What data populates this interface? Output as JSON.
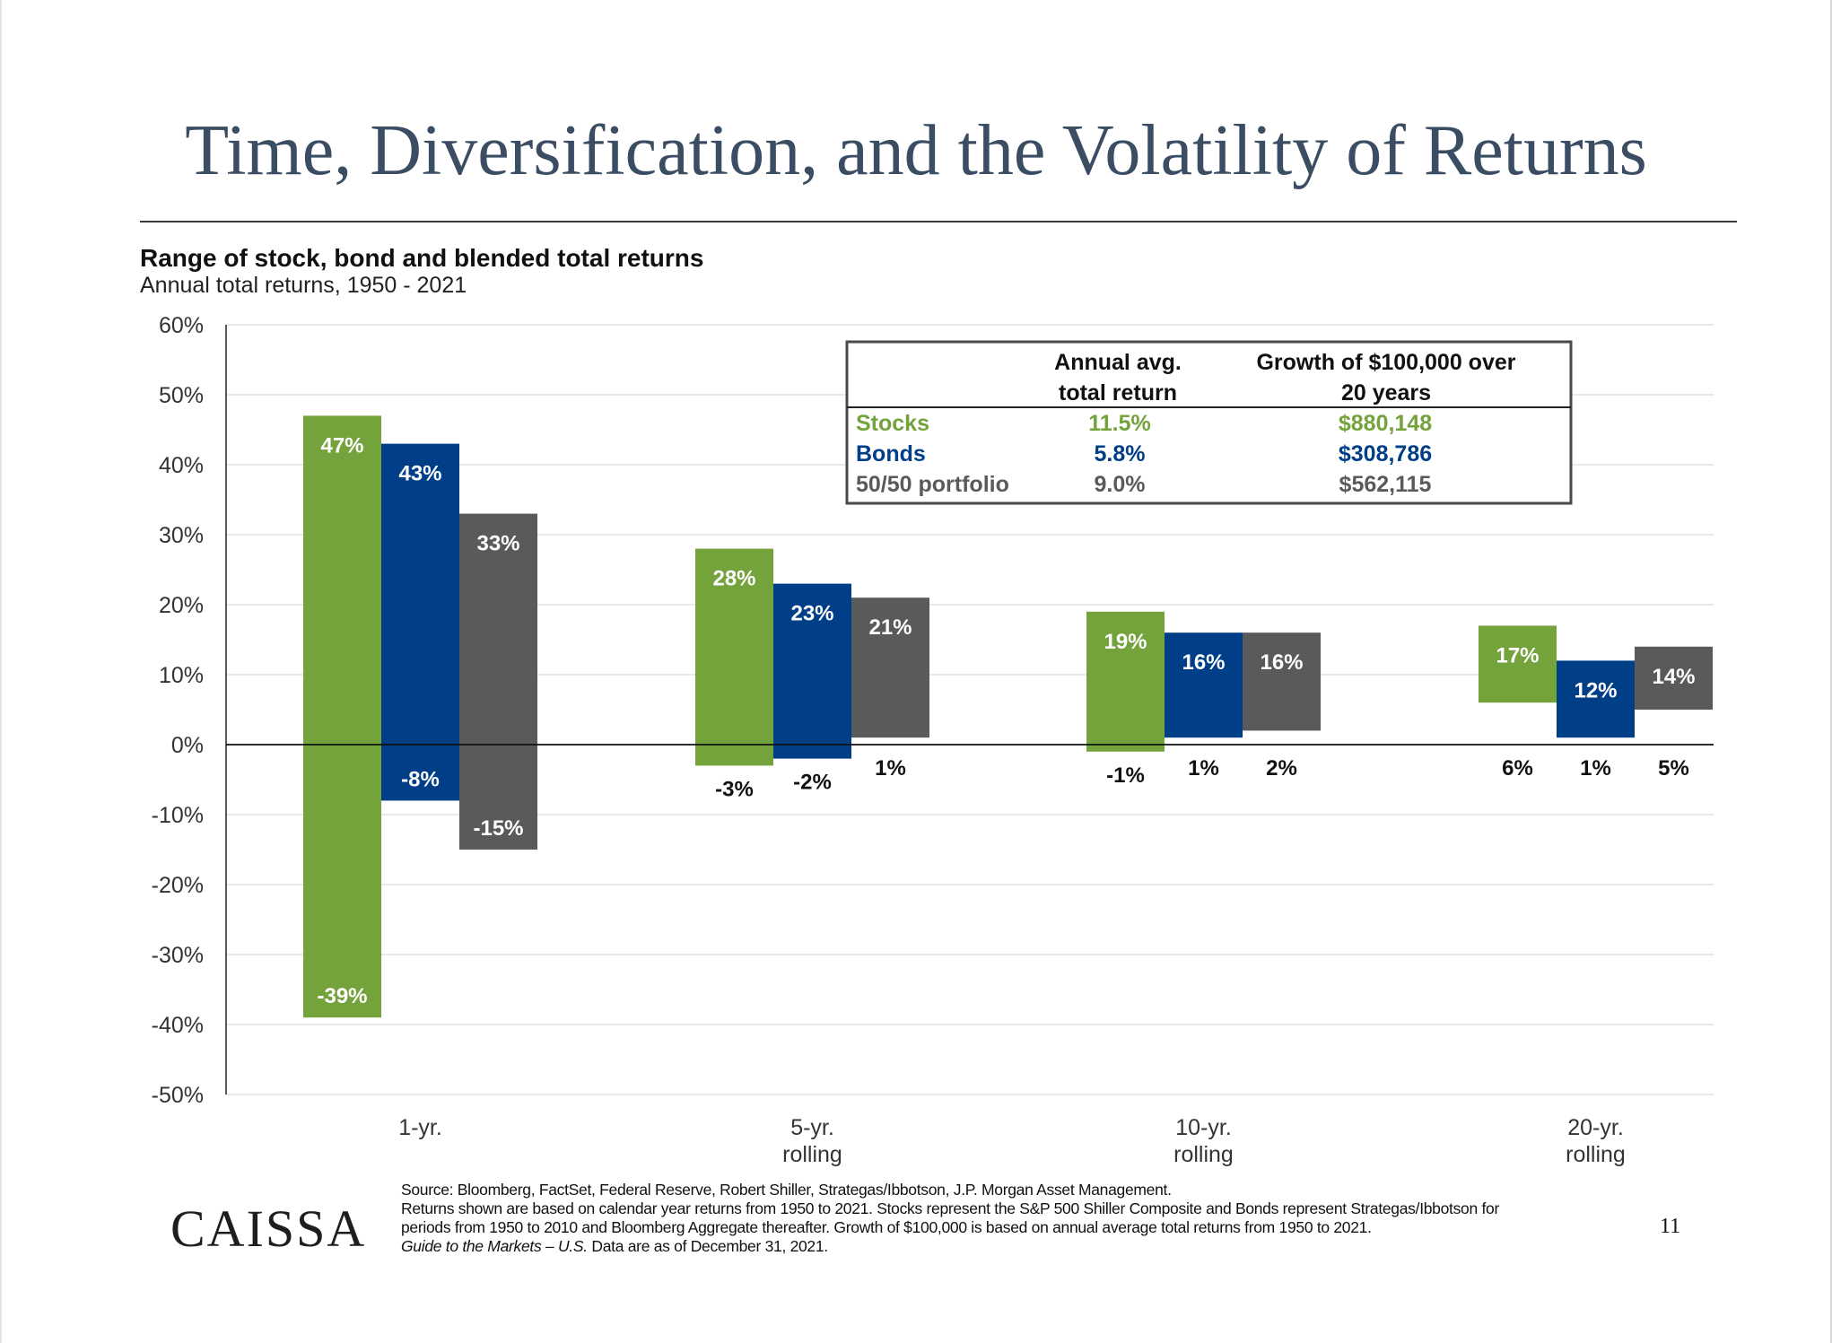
{
  "title": "Time, Diversification, and the Volatility of Returns",
  "chart_data": {
    "type": "bar",
    "title": "Range of stock, bond and blended total returns",
    "subtitle": "Annual total returns, 1950 - 2021",
    "ylim": [
      -50,
      60
    ],
    "y_ticks": [
      "60%",
      "50%",
      "40%",
      "30%",
      "20%",
      "10%",
      "0%",
      "-10%",
      "-20%",
      "-30%",
      "-40%",
      "-50%"
    ],
    "grid": true,
    "categories": [
      {
        "line1": "1-yr.",
        "line2": ""
      },
      {
        "line1": "5-yr.",
        "line2": "rolling"
      },
      {
        "line1": "10-yr.",
        "line2": "rolling"
      },
      {
        "line1": "20-yr.",
        "line2": "rolling"
      }
    ],
    "series": [
      {
        "key": "stocks",
        "color": "#74a23b",
        "high": [
          47,
          28,
          19,
          17
        ],
        "low": [
          -39,
          -3,
          -1,
          6
        ],
        "high_labels": [
          "47%",
          "28%",
          "19%",
          "17%"
        ],
        "low_labels": [
          "-39%",
          "-3%",
          "-1%",
          "6%"
        ]
      },
      {
        "key": "bonds",
        "color": "#003e88",
        "high": [
          43,
          23,
          16,
          12
        ],
        "low": [
          -8,
          -2,
          1,
          1
        ],
        "high_labels": [
          "43%",
          "23%",
          "16%",
          "12%"
        ],
        "low_labels": [
          "-8%",
          "-2%",
          "1%",
          "1%"
        ]
      },
      {
        "key": "blend",
        "color": "#585a5c",
        "high": [
          33,
          21,
          16,
          14
        ],
        "low": [
          -15,
          1,
          2,
          5
        ],
        "high_labels": [
          "33%",
          "21%",
          "16%",
          "14%"
        ],
        "low_labels": [
          "-15%",
          "1%",
          "2%",
          "5%"
        ]
      }
    ],
    "table": {
      "header_return_line1": "Annual avg.",
      "header_return_line2": "total return",
      "header_growth_line1": "Growth of $100,000 over",
      "header_growth_line2": "20 years",
      "rows": [
        {
          "name": "Stocks",
          "return": "11.5%",
          "growth": "$880,148",
          "color": "#74a23b"
        },
        {
          "name": "Bonds",
          "return": "5.8%",
          "growth": "$308,786",
          "color": "#003e88"
        },
        {
          "name": "50/50 portfolio",
          "return": "9.0%",
          "growth": "$562,115",
          "color": "#585a5c"
        }
      ]
    }
  },
  "source": {
    "line1": "Source: Bloomberg, FactSet, Federal Reserve, Robert Shiller, Strategas/Ibbotson, J.P. Morgan Asset Management.",
    "line2": "Returns shown are based on calendar year returns from 1950 to 2021. Stocks represent the S&P 500 Shiller Composite and Bonds represent Strategas/Ibbotson for",
    "line3": "periods from 1950 to 2010 and Bloomberg Aggregate thereafter. Growth of $100,000 is based on annual average total returns from 1950 to 2021.",
    "line4_italic": "Guide to the Markets – U.S.",
    "line4_rest": " Data are as of December 31, 2021."
  },
  "logo_text": "CAISSA",
  "page_number": "11"
}
